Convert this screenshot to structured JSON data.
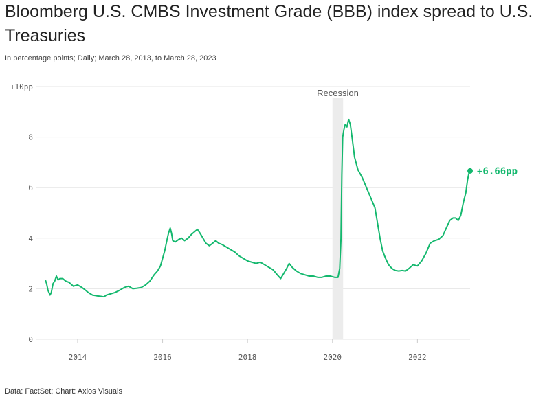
{
  "title": "Bloomberg U.S. CMBS Investment Grade (BBB) index spread to U.S. Treasuries",
  "subtitle": "In percentage points; Daily; March 28, 2013, to March 28, 2023",
  "footer": "Data: FactSet; Chart: Axios Visuals",
  "colors": {
    "line": "#14b86e",
    "recession": "#ececec",
    "grid": "#e6e6e6"
  },
  "chart_data": {
    "type": "line",
    "xlabel": "",
    "ylabel": "",
    "xlim": [
      2013.24,
      2023.24
    ],
    "ylim": [
      0,
      10
    ],
    "x_ticks": [
      "2014",
      "2016",
      "2018",
      "2020",
      "2022"
    ],
    "x_tick_values": [
      2014,
      2016,
      2018,
      2020,
      2022
    ],
    "y_ticks": [
      "0",
      "2",
      "4",
      "6",
      "8",
      "+10pp"
    ],
    "y_tick_values": [
      0,
      2,
      4,
      6,
      8,
      10
    ],
    "grid": true,
    "shaded_regions": [
      {
        "label": "Recession",
        "start": 2020.0,
        "end": 2020.25
      }
    ],
    "end_annotation": "+6.66pp",
    "series": [
      {
        "values": [
          [
            2013.24,
            2.35
          ],
          [
            2013.27,
            2.2
          ],
          [
            2013.3,
            1.95
          ],
          [
            2013.35,
            1.75
          ],
          [
            2013.38,
            1.85
          ],
          [
            2013.42,
            2.2
          ],
          [
            2013.46,
            2.3
          ],
          [
            2013.5,
            2.5
          ],
          [
            2013.54,
            2.35
          ],
          [
            2013.58,
            2.4
          ],
          [
            2013.65,
            2.4
          ],
          [
            2013.72,
            2.3
          ],
          [
            2013.8,
            2.25
          ],
          [
            2013.9,
            2.1
          ],
          [
            2014.0,
            2.15
          ],
          [
            2014.1,
            2.05
          ],
          [
            2014.18,
            1.95
          ],
          [
            2014.25,
            1.85
          ],
          [
            2014.35,
            1.75
          ],
          [
            2014.45,
            1.72
          ],
          [
            2014.55,
            1.7
          ],
          [
            2014.62,
            1.68
          ],
          [
            2014.68,
            1.75
          ],
          [
            2014.78,
            1.8
          ],
          [
            2014.88,
            1.85
          ],
          [
            2015.0,
            1.95
          ],
          [
            2015.1,
            2.05
          ],
          [
            2015.2,
            2.1
          ],
          [
            2015.3,
            2.0
          ],
          [
            2015.4,
            2.02
          ],
          [
            2015.5,
            2.05
          ],
          [
            2015.6,
            2.15
          ],
          [
            2015.7,
            2.3
          ],
          [
            2015.8,
            2.55
          ],
          [
            2015.88,
            2.7
          ],
          [
            2015.95,
            2.9
          ],
          [
            2016.0,
            3.2
          ],
          [
            2016.05,
            3.5
          ],
          [
            2016.1,
            3.9
          ],
          [
            2016.14,
            4.2
          ],
          [
            2016.18,
            4.4
          ],
          [
            2016.21,
            4.2
          ],
          [
            2016.24,
            3.9
          ],
          [
            2016.3,
            3.85
          ],
          [
            2016.38,
            3.95
          ],
          [
            2016.45,
            4.0
          ],
          [
            2016.52,
            3.9
          ],
          [
            2016.6,
            4.0
          ],
          [
            2016.68,
            4.15
          ],
          [
            2016.75,
            4.25
          ],
          [
            2016.82,
            4.35
          ],
          [
            2016.88,
            4.2
          ],
          [
            2016.95,
            4.0
          ],
          [
            2017.02,
            3.8
          ],
          [
            2017.1,
            3.7
          ],
          [
            2017.18,
            3.8
          ],
          [
            2017.25,
            3.9
          ],
          [
            2017.32,
            3.8
          ],
          [
            2017.4,
            3.75
          ],
          [
            2017.5,
            3.65
          ],
          [
            2017.6,
            3.55
          ],
          [
            2017.7,
            3.45
          ],
          [
            2017.8,
            3.3
          ],
          [
            2017.9,
            3.2
          ],
          [
            2018.0,
            3.1
          ],
          [
            2018.1,
            3.05
          ],
          [
            2018.2,
            3.0
          ],
          [
            2018.3,
            3.05
          ],
          [
            2018.4,
            2.95
          ],
          [
            2018.5,
            2.85
          ],
          [
            2018.6,
            2.75
          ],
          [
            2018.7,
            2.55
          ],
          [
            2018.78,
            2.4
          ],
          [
            2018.85,
            2.6
          ],
          [
            2018.92,
            2.8
          ],
          [
            2018.98,
            3.0
          ],
          [
            2019.05,
            2.85
          ],
          [
            2019.15,
            2.7
          ],
          [
            2019.25,
            2.6
          ],
          [
            2019.35,
            2.55
          ],
          [
            2019.45,
            2.5
          ],
          [
            2019.55,
            2.5
          ],
          [
            2019.65,
            2.45
          ],
          [
            2019.75,
            2.45
          ],
          [
            2019.85,
            2.5
          ],
          [
            2019.95,
            2.5
          ],
          [
            2020.05,
            2.45
          ],
          [
            2020.13,
            2.45
          ],
          [
            2020.17,
            2.8
          ],
          [
            2020.2,
            4.0
          ],
          [
            2020.22,
            6.5
          ],
          [
            2020.24,
            8.0
          ],
          [
            2020.27,
            8.3
          ],
          [
            2020.3,
            8.5
          ],
          [
            2020.34,
            8.4
          ],
          [
            2020.38,
            8.7
          ],
          [
            2020.42,
            8.5
          ],
          [
            2020.46,
            8.0
          ],
          [
            2020.52,
            7.2
          ],
          [
            2020.6,
            6.7
          ],
          [
            2020.7,
            6.4
          ],
          [
            2020.8,
            6.0
          ],
          [
            2020.9,
            5.6
          ],
          [
            2021.0,
            5.2
          ],
          [
            2021.06,
            4.6
          ],
          [
            2021.12,
            4.0
          ],
          [
            2021.18,
            3.5
          ],
          [
            2021.25,
            3.2
          ],
          [
            2021.32,
            2.95
          ],
          [
            2021.4,
            2.8
          ],
          [
            2021.48,
            2.72
          ],
          [
            2021.56,
            2.7
          ],
          [
            2021.64,
            2.72
          ],
          [
            2021.72,
            2.7
          ],
          [
            2021.8,
            2.8
          ],
          [
            2021.9,
            2.95
          ],
          [
            2022.0,
            2.9
          ],
          [
            2022.1,
            3.1
          ],
          [
            2022.2,
            3.4
          ],
          [
            2022.3,
            3.8
          ],
          [
            2022.4,
            3.9
          ],
          [
            2022.5,
            3.95
          ],
          [
            2022.6,
            4.1
          ],
          [
            2022.68,
            4.4
          ],
          [
            2022.76,
            4.7
          ],
          [
            2022.84,
            4.8
          ],
          [
            2022.9,
            4.8
          ],
          [
            2022.96,
            4.7
          ],
          [
            2023.02,
            4.9
          ],
          [
            2023.08,
            5.4
          ],
          [
            2023.14,
            5.8
          ],
          [
            2023.18,
            6.3
          ],
          [
            2023.21,
            6.55
          ],
          [
            2023.24,
            6.66
          ]
        ]
      }
    ]
  }
}
